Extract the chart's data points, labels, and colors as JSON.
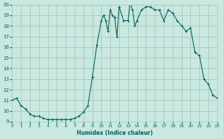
{
  "xlabel": "Humidex (Indice chaleur)",
  "ylabel": "",
  "bg_color": "#c8e8e0",
  "grid_color": "#b0c8c0",
  "line_color": "#006060",
  "marker_color": "#006060",
  "xlim": [
    0,
    23
  ],
  "ylim": [
    9,
    20
  ],
  "yticks": [
    9,
    10,
    11,
    12,
    13,
    14,
    15,
    16,
    17,
    18,
    19,
    20
  ],
  "xticks": [
    0,
    1,
    2,
    3,
    4,
    5,
    6,
    7,
    8,
    9,
    10,
    11,
    12,
    13,
    14,
    15,
    16,
    17,
    18,
    19,
    20,
    21,
    22,
    23
  ],
  "x": [
    0,
    0.5,
    1,
    1.5,
    2,
    2.5,
    3,
    3.5,
    4,
    4.5,
    5,
    5.5,
    6,
    6.5,
    7,
    7.5,
    8,
    8.5,
    9,
    9.5,
    10,
    10.25,
    10.5,
    10.75,
    11,
    11.25,
    11.5,
    11.75,
    12,
    12.5,
    13,
    13.25,
    13.5,
    13.75,
    14,
    14.5,
    15,
    15.5,
    16,
    16.5,
    17,
    17.5,
    18,
    18.5,
    19,
    19.5,
    20,
    20.5,
    21,
    21.5,
    22,
    22.5,
    23
  ],
  "y": [
    11.0,
    11.2,
    10.5,
    10.2,
    9.7,
    9.5,
    9.5,
    9.3,
    9.2,
    9.2,
    9.2,
    9.2,
    9.2,
    9.2,
    9.3,
    9.5,
    9.9,
    10.5,
    13.2,
    16.2,
    18.5,
    19.0,
    18.5,
    17.5,
    19.5,
    19.0,
    18.8,
    17.0,
    19.8,
    18.5,
    18.5,
    20.2,
    19.5,
    18.0,
    18.5,
    19.5,
    19.8,
    19.8,
    19.5,
    19.5,
    18.5,
    19.5,
    19.2,
    18.5,
    18.0,
    17.5,
    17.8,
    15.5,
    15.2,
    13.0,
    12.5,
    11.5,
    11.2
  ]
}
